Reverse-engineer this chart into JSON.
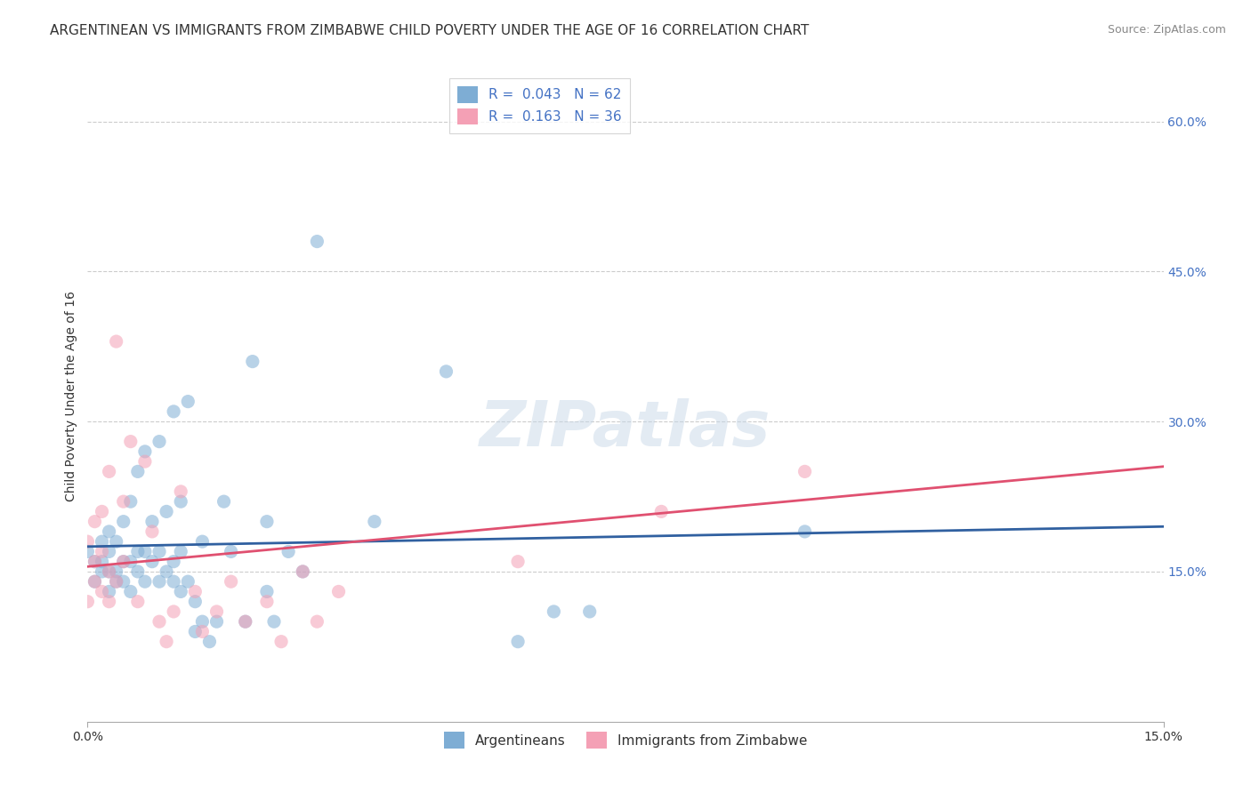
{
  "title": "ARGENTINEAN VS IMMIGRANTS FROM ZIMBABWE CHILD POVERTY UNDER THE AGE OF 16 CORRELATION CHART",
  "source": "Source: ZipAtlas.com",
  "xlabel_bottom": "",
  "ylabel": "Child Poverty Under the Age of 16",
  "xmin": 0.0,
  "xmax": 0.15,
  "ymin": 0.0,
  "ymax": 0.65,
  "x_ticks": [
    0.0,
    0.15
  ],
  "x_tick_labels": [
    "0.0%",
    "15.0%"
  ],
  "y_ticks_right": [
    0.15,
    0.3,
    0.45,
    0.6
  ],
  "y_tick_labels_right": [
    "15.0%",
    "30.0%",
    "45.0%",
    "60.0%"
  ],
  "legend_R1": "R =  0.043",
  "legend_N1": "N = 62",
  "legend_R2": "R =  0.163",
  "legend_N2": "N = 36",
  "color_blue": "#7eadd4",
  "color_pink": "#f4a0b5",
  "color_blue_line": "#3060a0",
  "color_pink_line": "#e05070",
  "color_blue_dark": "#4472c4",
  "color_text_blue": "#4472c4",
  "watermark": "ZIPatlas",
  "blue_scatter_x": [
    0.0,
    0.001,
    0.001,
    0.002,
    0.002,
    0.002,
    0.003,
    0.003,
    0.003,
    0.003,
    0.004,
    0.004,
    0.004,
    0.005,
    0.005,
    0.005,
    0.006,
    0.006,
    0.006,
    0.007,
    0.007,
    0.007,
    0.008,
    0.008,
    0.008,
    0.009,
    0.009,
    0.01,
    0.01,
    0.01,
    0.011,
    0.011,
    0.012,
    0.012,
    0.012,
    0.013,
    0.013,
    0.013,
    0.014,
    0.014,
    0.015,
    0.015,
    0.016,
    0.016,
    0.017,
    0.018,
    0.019,
    0.02,
    0.022,
    0.023,
    0.025,
    0.025,
    0.026,
    0.028,
    0.03,
    0.032,
    0.04,
    0.05,
    0.06,
    0.065,
    0.07,
    0.1
  ],
  "blue_scatter_y": [
    0.17,
    0.14,
    0.16,
    0.15,
    0.16,
    0.18,
    0.13,
    0.15,
    0.17,
    0.19,
    0.14,
    0.15,
    0.18,
    0.14,
    0.16,
    0.2,
    0.13,
    0.16,
    0.22,
    0.15,
    0.17,
    0.25,
    0.14,
    0.17,
    0.27,
    0.16,
    0.2,
    0.14,
    0.17,
    0.28,
    0.15,
    0.21,
    0.14,
    0.16,
    0.31,
    0.13,
    0.17,
    0.22,
    0.14,
    0.32,
    0.09,
    0.12,
    0.1,
    0.18,
    0.08,
    0.1,
    0.22,
    0.17,
    0.1,
    0.36,
    0.13,
    0.2,
    0.1,
    0.17,
    0.15,
    0.48,
    0.2,
    0.35,
    0.08,
    0.11,
    0.11,
    0.19
  ],
  "pink_scatter_x": [
    0.0,
    0.0,
    0.001,
    0.001,
    0.001,
    0.002,
    0.002,
    0.002,
    0.003,
    0.003,
    0.003,
    0.004,
    0.004,
    0.005,
    0.005,
    0.006,
    0.007,
    0.008,
    0.009,
    0.01,
    0.011,
    0.012,
    0.013,
    0.015,
    0.016,
    0.018,
    0.02,
    0.022,
    0.025,
    0.027,
    0.03,
    0.032,
    0.035,
    0.06,
    0.08,
    0.1
  ],
  "pink_scatter_y": [
    0.12,
    0.18,
    0.14,
    0.16,
    0.2,
    0.13,
    0.17,
    0.21,
    0.12,
    0.15,
    0.25,
    0.14,
    0.38,
    0.16,
    0.22,
    0.28,
    0.12,
    0.26,
    0.19,
    0.1,
    0.08,
    0.11,
    0.23,
    0.13,
    0.09,
    0.11,
    0.14,
    0.1,
    0.12,
    0.08,
    0.15,
    0.1,
    0.13,
    0.16,
    0.21,
    0.25
  ],
  "blue_line_x": [
    0.0,
    0.15
  ],
  "blue_line_y": [
    0.175,
    0.195
  ],
  "pink_line_x": [
    0.0,
    0.15
  ],
  "pink_line_y": [
    0.155,
    0.255
  ],
  "dot_size": 120,
  "dot_alpha": 0.55,
  "grid_color": "#cccccc",
  "background_color": "#ffffff",
  "title_fontsize": 11,
  "axis_label_fontsize": 10,
  "tick_fontsize": 10,
  "legend_fontsize": 11
}
